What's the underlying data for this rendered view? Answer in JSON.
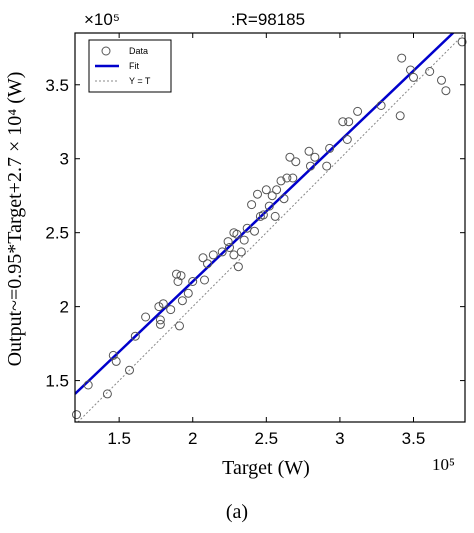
{
  "chart_data": {
    "type": "scatter",
    "title": ":R=98185",
    "xlabel": "Target (W)",
    "ylabel": "Output~=0.95*Target+2.7 × 10⁴ (W)",
    "x_exponent": "10⁵",
    "y_exponent": "×10⁵",
    "xlim": [
      1.2,
      3.85
    ],
    "ylim": [
      1.22,
      3.85
    ],
    "x_ticks": [
      "1.5",
      "2",
      "2.5",
      "3",
      "3.5"
    ],
    "y_ticks": [
      "1.5",
      "2",
      "2.5",
      "3",
      "3.5"
    ],
    "caption": "(a)",
    "legend": {
      "position": "top-left",
      "entries": [
        "Data",
        "Fit",
        "Y = T"
      ]
    },
    "fit": {
      "slope": 0.95,
      "intercept": 0.27
    },
    "colors": {
      "data": "#555555",
      "fit": "#0000cc",
      "identity": "#888888"
    },
    "series": [
      {
        "name": "Data",
        "points": [
          [
            1.21,
            1.27
          ],
          [
            1.29,
            1.47
          ],
          [
            1.42,
            1.41
          ],
          [
            1.46,
            1.67
          ],
          [
            1.48,
            1.63
          ],
          [
            1.57,
            1.57
          ],
          [
            1.61,
            1.8
          ],
          [
            1.68,
            1.93
          ],
          [
            1.77,
            2.0
          ],
          [
            1.78,
            1.91
          ],
          [
            1.78,
            1.88
          ],
          [
            1.8,
            2.02
          ],
          [
            1.85,
            1.98
          ],
          [
            1.89,
            2.22
          ],
          [
            1.9,
            2.17
          ],
          [
            1.91,
            1.87
          ],
          [
            1.92,
            2.21
          ],
          [
            1.93,
            2.04
          ],
          [
            1.97,
            2.09
          ],
          [
            2.0,
            2.17
          ],
          [
            2.07,
            2.33
          ],
          [
            2.08,
            2.18
          ],
          [
            2.1,
            2.29
          ],
          [
            2.14,
            2.35
          ],
          [
            2.2,
            2.37
          ],
          [
            2.24,
            2.44
          ],
          [
            2.25,
            2.4
          ],
          [
            2.28,
            2.5
          ],
          [
            2.28,
            2.35
          ],
          [
            2.3,
            2.49
          ],
          [
            2.31,
            2.27
          ],
          [
            2.33,
            2.37
          ],
          [
            2.35,
            2.45
          ],
          [
            2.37,
            2.53
          ],
          [
            2.4,
            2.69
          ],
          [
            2.42,
            2.51
          ],
          [
            2.44,
            2.76
          ],
          [
            2.46,
            2.61
          ],
          [
            2.48,
            2.62
          ],
          [
            2.5,
            2.79
          ],
          [
            2.52,
            2.68
          ],
          [
            2.54,
            2.75
          ],
          [
            2.56,
            2.61
          ],
          [
            2.57,
            2.79
          ],
          [
            2.6,
            2.85
          ],
          [
            2.62,
            2.73
          ],
          [
            2.64,
            2.87
          ],
          [
            2.66,
            3.01
          ],
          [
            2.68,
            2.87
          ],
          [
            2.7,
            2.98
          ],
          [
            2.79,
            3.05
          ],
          [
            2.8,
            2.95
          ],
          [
            2.83,
            3.01
          ],
          [
            2.91,
            2.95
          ],
          [
            2.93,
            3.07
          ],
          [
            3.02,
            3.25
          ],
          [
            3.05,
            3.13
          ],
          [
            3.06,
            3.25
          ],
          [
            3.12,
            3.32
          ],
          [
            3.28,
            3.36
          ],
          [
            3.41,
            3.29
          ],
          [
            3.42,
            3.68
          ],
          [
            3.48,
            3.6
          ],
          [
            3.5,
            3.55
          ],
          [
            3.61,
            3.59
          ],
          [
            3.69,
            3.53
          ],
          [
            3.72,
            3.46
          ],
          [
            3.83,
            3.79
          ]
        ]
      }
    ]
  }
}
